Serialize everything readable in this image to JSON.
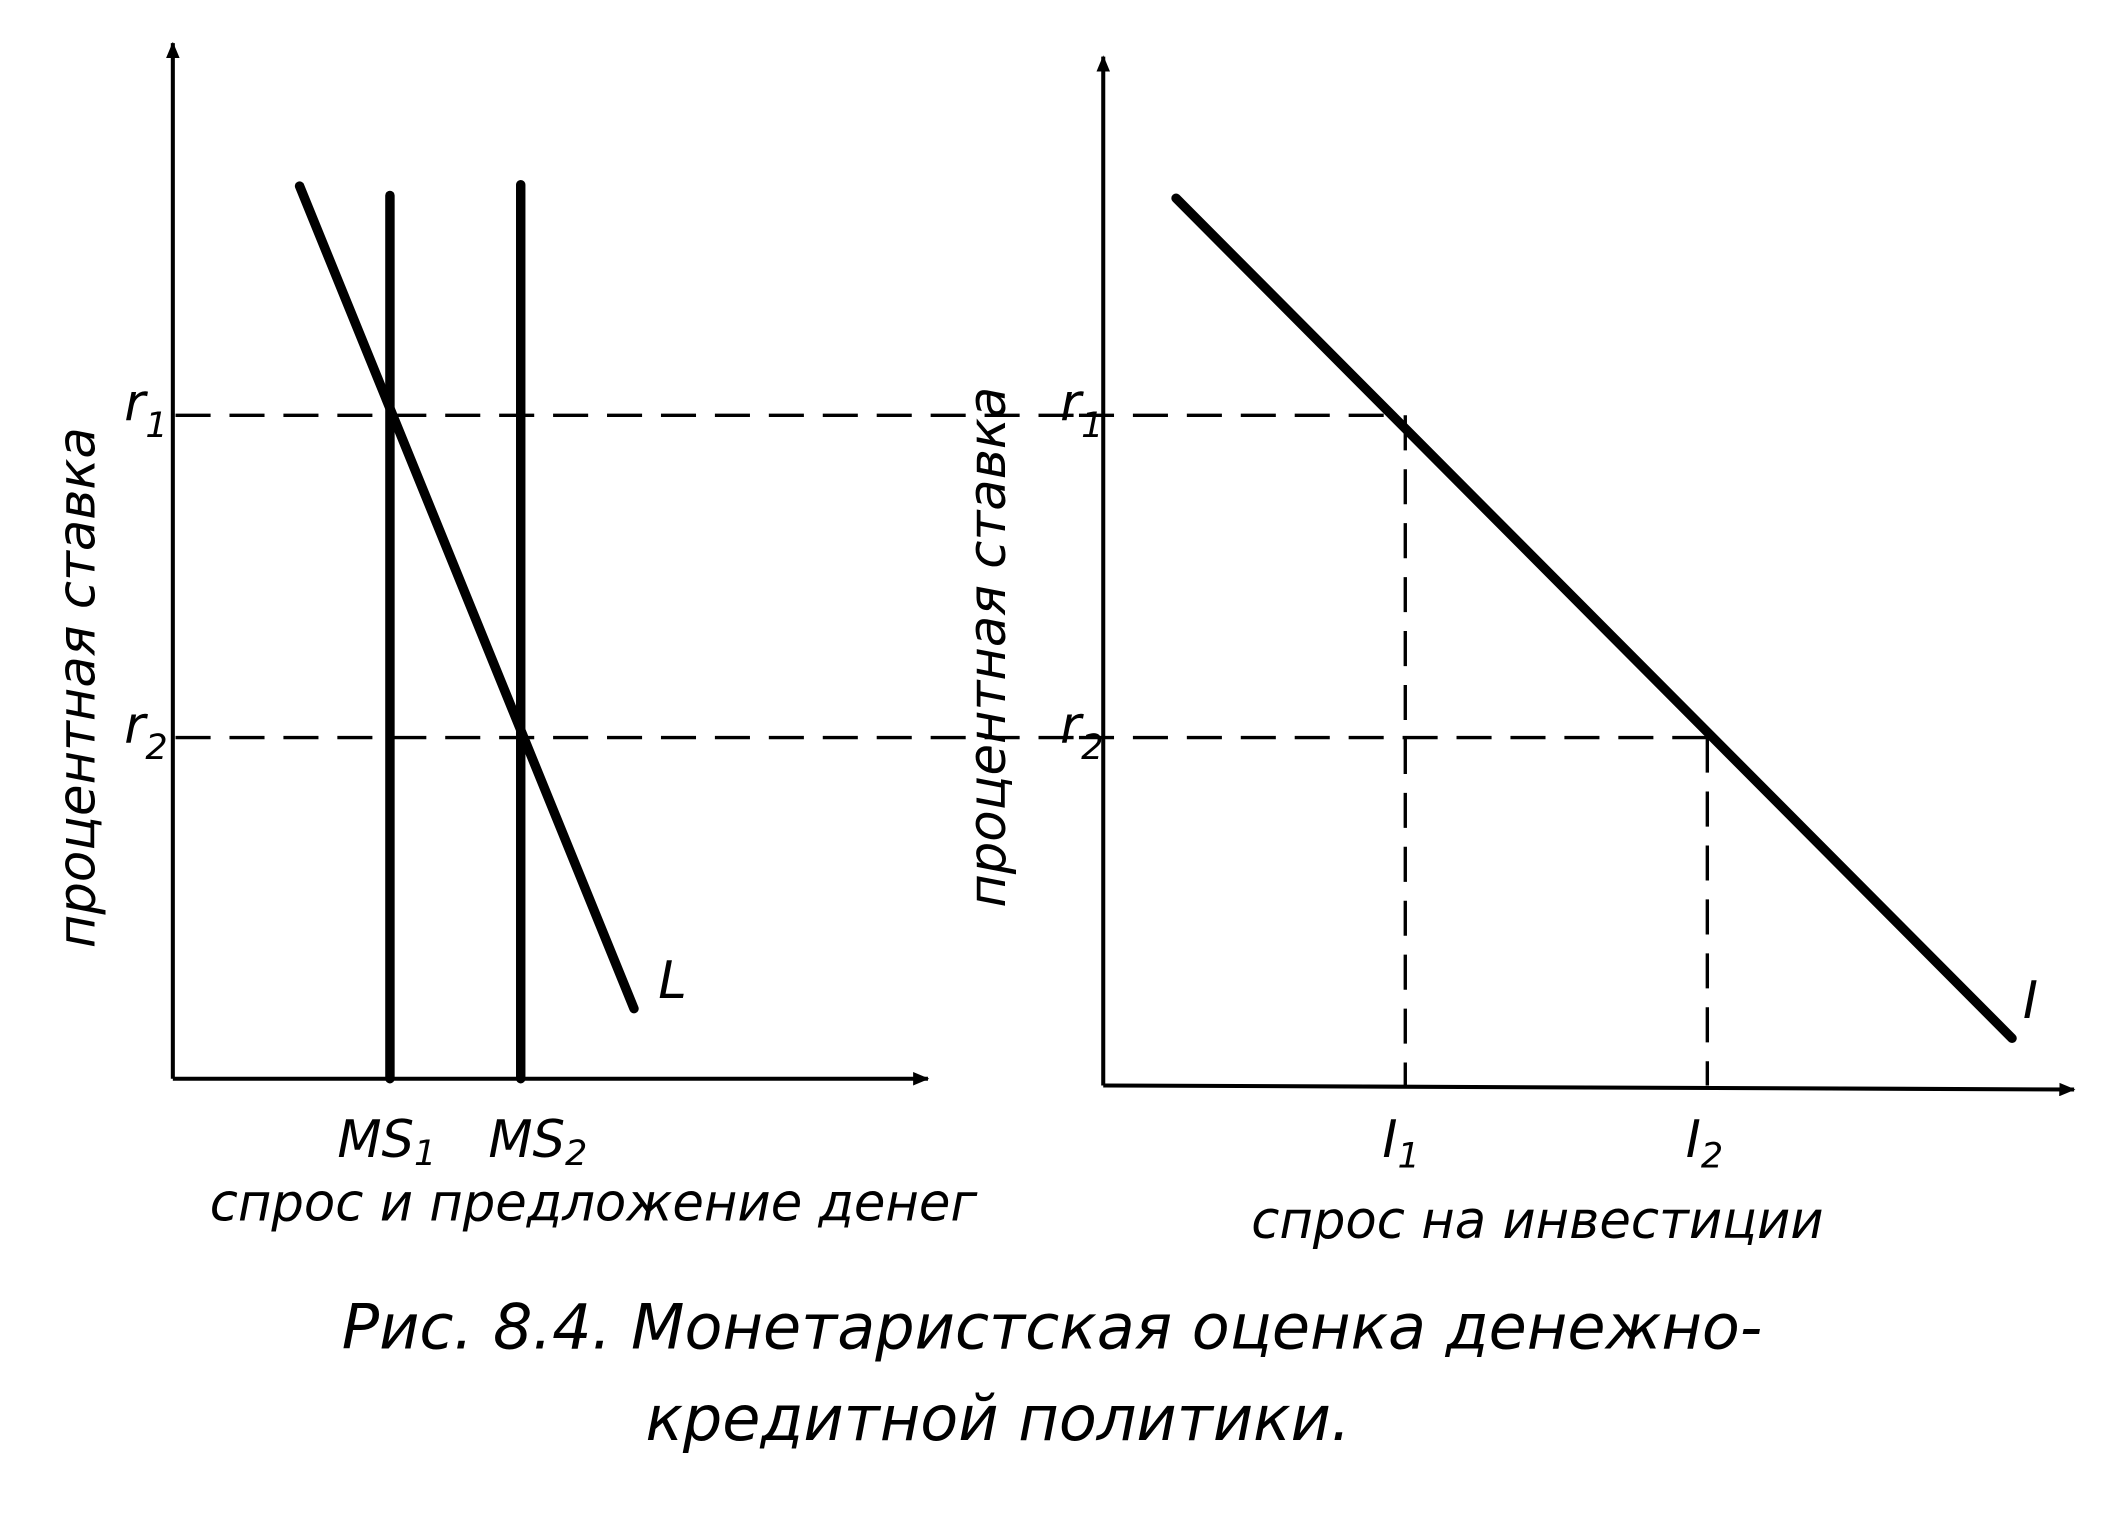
{
  "left_panel": {
    "y_axis_label": "процентная ставка",
    "x_axis_label": "спрос и предложение денег",
    "r1": {
      "symbol": "r",
      "subscript": "1"
    },
    "r2": {
      "symbol": "r",
      "subscript": "2"
    },
    "ms1": {
      "symbol": "MS",
      "subscript": "1"
    },
    "ms2": {
      "symbol": "MS",
      "subscript": "2"
    },
    "curve_label": "L"
  },
  "right_panel": {
    "y_axis_label": "процентная ставка",
    "x_axis_label": "спрос на инвестиции",
    "r1": {
      "symbol": "r",
      "subscript": "1"
    },
    "r2": {
      "symbol": "r",
      "subscript": "2"
    },
    "i1": {
      "symbol": "I",
      "subscript": "1"
    },
    "i2": {
      "symbol": "I",
      "subscript": "2"
    },
    "curve_label": "I"
  },
  "caption": {
    "line1": "Рис. 8.4. Монетаристская оценка денежно-",
    "line2": "кредитной политики."
  }
}
